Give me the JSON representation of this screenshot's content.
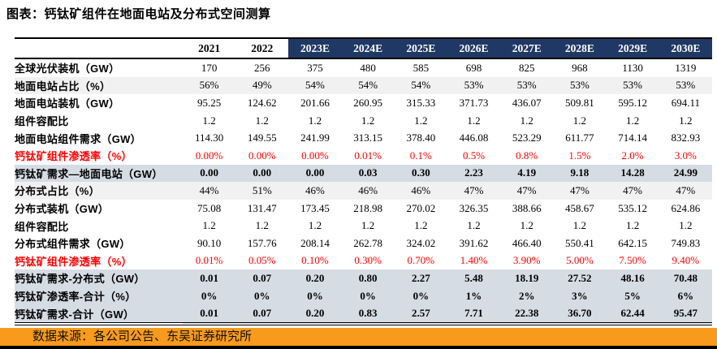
{
  "title": "图表：钙钛矿组件在地面电站及分布式空间测算",
  "source": "数据来源：各公司公告、东吴证券研究所",
  "colors": {
    "header_navy": "#1F3864",
    "highlight_row": "#D6DCE4",
    "shade_row": "#F1F1F1",
    "red_text": "#FF0000",
    "source_bar_orange": "#F89A1C",
    "bottom_bar": "#000000"
  },
  "table": {
    "columns": [
      {
        "label": "2021",
        "estimate": false
      },
      {
        "label": "2022",
        "estimate": false
      },
      {
        "label": "2023E",
        "estimate": true
      },
      {
        "label": "2024E",
        "estimate": true
      },
      {
        "label": "2025E",
        "estimate": true
      },
      {
        "label": "2026E",
        "estimate": true
      },
      {
        "label": "2027E",
        "estimate": true
      },
      {
        "label": "2028E",
        "estimate": true
      },
      {
        "label": "2029E",
        "estimate": true
      },
      {
        "label": "2030E",
        "estimate": true
      }
    ],
    "rows": [
      {
        "label": "全球光伏装机（GW）",
        "style": "plain",
        "values": [
          "170",
          "256",
          "375",
          "480",
          "585",
          "698",
          "825",
          "968",
          "1130",
          "1319"
        ]
      },
      {
        "label": "地面电站占比（%）",
        "style": "shade",
        "values": [
          "56%",
          "49%",
          "54%",
          "54%",
          "54%",
          "53%",
          "53%",
          "53%",
          "53%",
          "53%"
        ]
      },
      {
        "label": "地面电站装机（GW）",
        "style": "plain",
        "values": [
          "95.25",
          "124.62",
          "201.66",
          "260.95",
          "315.33",
          "371.73",
          "436.07",
          "509.81",
          "595.12",
          "694.11"
        ]
      },
      {
        "label": "组件容配比",
        "style": "plain",
        "values": [
          "1.2",
          "1.2",
          "1.2",
          "1.2",
          "1.2",
          "1.2",
          "1.2",
          "1.2",
          "1.2",
          "1.2"
        ]
      },
      {
        "label": "地面电站组件需求（GW）",
        "style": "plain",
        "values": [
          "114.30",
          "149.55",
          "241.99",
          "313.15",
          "378.40",
          "446.08",
          "523.29",
          "611.77",
          "714.14",
          "832.93"
        ]
      },
      {
        "label": "钙钛矿组件渗透率（%）",
        "style": "red",
        "values": [
          "0.00%",
          "0.00%",
          "0.00%",
          "0.01%",
          "0.1%",
          "0.5%",
          "0.8%",
          "1.5%",
          "2.0%",
          "3.0%"
        ]
      },
      {
        "label": "钙钛矿需求—地面电站（GW）",
        "style": "highlight",
        "values": [
          "0.00",
          "0.00",
          "0.00",
          "0.03",
          "0.30",
          "2.23",
          "4.19",
          "9.18",
          "14.28",
          "24.99"
        ]
      },
      {
        "label": "分布式占比（%）",
        "style": "shade",
        "values": [
          "44%",
          "51%",
          "46%",
          "46%",
          "46%",
          "47%",
          "47%",
          "47%",
          "47%",
          "47%"
        ]
      },
      {
        "label": "分布式装机（GW）",
        "style": "plain",
        "values": [
          "75.08",
          "131.47",
          "173.45",
          "218.98",
          "270.02",
          "326.35",
          "388.66",
          "458.67",
          "535.12",
          "624.86"
        ]
      },
      {
        "label": "组件容配比",
        "style": "plain",
        "values": [
          "1.2",
          "1.2",
          "1.2",
          "1.2",
          "1.2",
          "1.2",
          "1.2",
          "1.2",
          "1.2",
          "1.2"
        ]
      },
      {
        "label": "分布式组件需求（GW）",
        "style": "plain",
        "values": [
          "90.10",
          "157.76",
          "208.14",
          "262.78",
          "324.02",
          "391.62",
          "466.40",
          "550.41",
          "642.15",
          "749.83"
        ]
      },
      {
        "label": "钙钛矿组件渗透率（%）",
        "style": "red",
        "values": [
          "0.01%",
          "0.05%",
          "0.10%",
          "0.30%",
          "0.70%",
          "1.40%",
          "3.90%",
          "5.00%",
          "7.50%",
          "9.40%"
        ]
      },
      {
        "label": "钙钛矿需求-分布式（GW）",
        "style": "highlight",
        "values": [
          "0.01",
          "0.07",
          "0.20",
          "0.80",
          "2.27",
          "5.48",
          "18.19",
          "27.52",
          "48.16",
          "70.48"
        ]
      },
      {
        "label": "钙钛矿渗透率-合计（%）",
        "style": "highlight",
        "values": [
          "0%",
          "0%",
          "0%",
          "0%",
          "0%",
          "1%",
          "2%",
          "3%",
          "5%",
          "6%"
        ]
      },
      {
        "label": "钙钛矿需求-合计（GW）",
        "style": "highlight",
        "values": [
          "0.01",
          "0.07",
          "0.20",
          "0.83",
          "2.57",
          "7.71",
          "22.38",
          "36.70",
          "62.44",
          "95.47"
        ]
      }
    ]
  }
}
